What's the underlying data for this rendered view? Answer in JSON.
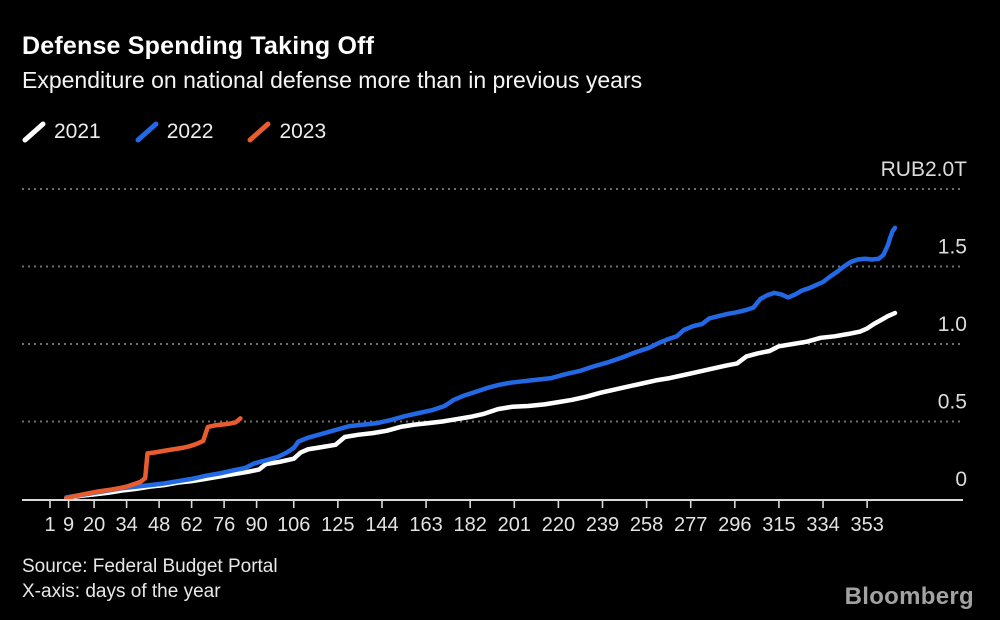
{
  "header": {
    "title": "Defense Spending Taking Off",
    "subtitle": "Expenditure on national defense more than in previous years"
  },
  "legend": {
    "items": [
      {
        "label": "2021",
        "color": "#ffffff"
      },
      {
        "label": "2022",
        "color": "#2368e4"
      },
      {
        "label": "2023",
        "color": "#e85c2e"
      }
    ]
  },
  "footer": {
    "source": "Source: Federal Budget Portal",
    "xaxis_note": "X-axis: days of the year",
    "brand": "Bloomberg"
  },
  "colors": {
    "background": "#000000",
    "gridline": "#6e6e6e",
    "axis": "#d9d9d9",
    "tick_label": "#e3e3e3",
    "y_label": "#dcdcdc"
  },
  "chart_data": {
    "type": "line",
    "title": "Defense Spending Taking Off",
    "subtitle": "Expenditure on national defense more than in previous years",
    "unit": "RUB trillions",
    "xlabel": "days of the year",
    "ylabel": "RUB2.0T",
    "xlim": [
      1,
      365
    ],
    "ylim": [
      0,
      2.07
    ],
    "grid": "horizontal dotted",
    "legend_position": "top-left",
    "x_ticks": [
      1,
      9,
      20,
      34,
      48,
      62,
      76,
      90,
      106,
      125,
      144,
      163,
      182,
      201,
      220,
      239,
      258,
      277,
      296,
      315,
      334,
      353
    ],
    "y_axis": {
      "ticks": [
        {
          "value": 2.0,
          "label": "RUB2.0T"
        },
        {
          "value": 1.5,
          "label": "1.5"
        },
        {
          "value": 1.0,
          "label": "1.0"
        },
        {
          "value": 0.5,
          "label": "0.5"
        },
        {
          "value": 0.0,
          "label": "0"
        }
      ]
    },
    "series": [
      {
        "name": "2021",
        "color": "#ffffff",
        "points": [
          [
            8,
            0.005
          ],
          [
            14,
            0.02
          ],
          [
            20,
            0.03
          ],
          [
            26,
            0.04
          ],
          [
            32,
            0.055
          ],
          [
            38,
            0.065
          ],
          [
            44,
            0.08
          ],
          [
            50,
            0.09
          ],
          [
            56,
            0.105
          ],
          [
            62,
            0.115
          ],
          [
            68,
            0.13
          ],
          [
            74,
            0.145
          ],
          [
            80,
            0.16
          ],
          [
            86,
            0.175
          ],
          [
            91,
            0.19
          ],
          [
            94,
            0.225
          ],
          [
            100,
            0.24
          ],
          [
            106,
            0.26
          ],
          [
            109,
            0.3
          ],
          [
            112,
            0.32
          ],
          [
            118,
            0.335
          ],
          [
            124,
            0.35
          ],
          [
            128,
            0.4
          ],
          [
            134,
            0.415
          ],
          [
            140,
            0.425
          ],
          [
            146,
            0.44
          ],
          [
            152,
            0.465
          ],
          [
            158,
            0.48
          ],
          [
            164,
            0.49
          ],
          [
            170,
            0.5
          ],
          [
            176,
            0.515
          ],
          [
            182,
            0.53
          ],
          [
            188,
            0.55
          ],
          [
            194,
            0.58
          ],
          [
            200,
            0.595
          ],
          [
            207,
            0.6
          ],
          [
            214,
            0.61
          ],
          [
            220,
            0.625
          ],
          [
            226,
            0.64
          ],
          [
            232,
            0.66
          ],
          [
            238,
            0.685
          ],
          [
            244,
            0.705
          ],
          [
            250,
            0.725
          ],
          [
            256,
            0.745
          ],
          [
            262,
            0.765
          ],
          [
            268,
            0.78
          ],
          [
            274,
            0.8
          ],
          [
            280,
            0.82
          ],
          [
            286,
            0.84
          ],
          [
            292,
            0.86
          ],
          [
            297,
            0.875
          ],
          [
            301,
            0.92
          ],
          [
            306,
            0.94
          ],
          [
            311,
            0.955
          ],
          [
            315,
            0.985
          ],
          [
            321,
            1.0
          ],
          [
            327,
            1.015
          ],
          [
            333,
            1.04
          ],
          [
            339,
            1.05
          ],
          [
            345,
            1.065
          ],
          [
            350,
            1.08
          ],
          [
            353,
            1.1
          ],
          [
            356,
            1.13
          ],
          [
            359,
            1.155
          ],
          [
            362,
            1.18
          ],
          [
            365,
            1.2
          ]
        ]
      },
      {
        "name": "2022",
        "color": "#2368e4",
        "points": [
          [
            8,
            0.01
          ],
          [
            14,
            0.025
          ],
          [
            20,
            0.04
          ],
          [
            26,
            0.055
          ],
          [
            32,
            0.07
          ],
          [
            38,
            0.08
          ],
          [
            44,
            0.09
          ],
          [
            50,
            0.1
          ],
          [
            56,
            0.115
          ],
          [
            62,
            0.13
          ],
          [
            68,
            0.15
          ],
          [
            74,
            0.165
          ],
          [
            80,
            0.185
          ],
          [
            85,
            0.2
          ],
          [
            89,
            0.23
          ],
          [
            94,
            0.25
          ],
          [
            99,
            0.27
          ],
          [
            103,
            0.3
          ],
          [
            106,
            0.33
          ],
          [
            108,
            0.37
          ],
          [
            112,
            0.395
          ],
          [
            118,
            0.42
          ],
          [
            124,
            0.445
          ],
          [
            130,
            0.47
          ],
          [
            136,
            0.48
          ],
          [
            142,
            0.49
          ],
          [
            148,
            0.51
          ],
          [
            154,
            0.535
          ],
          [
            160,
            0.555
          ],
          [
            166,
            0.575
          ],
          [
            171,
            0.6
          ],
          [
            175,
            0.64
          ],
          [
            179,
            0.665
          ],
          [
            184,
            0.69
          ],
          [
            189,
            0.715
          ],
          [
            194,
            0.735
          ],
          [
            199,
            0.75
          ],
          [
            205,
            0.76
          ],
          [
            211,
            0.77
          ],
          [
            217,
            0.78
          ],
          [
            223,
            0.805
          ],
          [
            229,
            0.825
          ],
          [
            235,
            0.855
          ],
          [
            241,
            0.88
          ],
          [
            247,
            0.91
          ],
          [
            253,
            0.945
          ],
          [
            259,
            0.975
          ],
          [
            263,
            1.005
          ],
          [
            267,
            1.03
          ],
          [
            271,
            1.05
          ],
          [
            274,
            1.09
          ],
          [
            278,
            1.115
          ],
          [
            282,
            1.13
          ],
          [
            285,
            1.165
          ],
          [
            289,
            1.18
          ],
          [
            293,
            1.195
          ],
          [
            297,
            1.205
          ],
          [
            301,
            1.22
          ],
          [
            304,
            1.235
          ],
          [
            307,
            1.29
          ],
          [
            310,
            1.315
          ],
          [
            313,
            1.33
          ],
          [
            316,
            1.32
          ],
          [
            319,
            1.3
          ],
          [
            322,
            1.32
          ],
          [
            325,
            1.345
          ],
          [
            328,
            1.36
          ],
          [
            331,
            1.38
          ],
          [
            334,
            1.4
          ],
          [
            337,
            1.435
          ],
          [
            340,
            1.465
          ],
          [
            343,
            1.5
          ],
          [
            346,
            1.53
          ],
          [
            349,
            1.545
          ],
          [
            352,
            1.55
          ],
          [
            355,
            1.545
          ],
          [
            358,
            1.55
          ],
          [
            360,
            1.575
          ],
          [
            362,
            1.64
          ],
          [
            363,
            1.69
          ],
          [
            364,
            1.73
          ],
          [
            365,
            1.75
          ]
        ]
      },
      {
        "name": "2023",
        "color": "#e85c2e",
        "points": [
          [
            8,
            0.005
          ],
          [
            12,
            0.02
          ],
          [
            17,
            0.035
          ],
          [
            22,
            0.05
          ],
          [
            27,
            0.06
          ],
          [
            31,
            0.07
          ],
          [
            34,
            0.08
          ],
          [
            37,
            0.095
          ],
          [
            40,
            0.11
          ],
          [
            42,
            0.135
          ],
          [
            43,
            0.295
          ],
          [
            46,
            0.3
          ],
          [
            50,
            0.31
          ],
          [
            54,
            0.32
          ],
          [
            58,
            0.33
          ],
          [
            61,
            0.34
          ],
          [
            64,
            0.355
          ],
          [
            67,
            0.375
          ],
          [
            68,
            0.42
          ],
          [
            69,
            0.465
          ],
          [
            72,
            0.475
          ],
          [
            75,
            0.48
          ],
          [
            78,
            0.485
          ],
          [
            81,
            0.495
          ],
          [
            83,
            0.52
          ]
        ]
      }
    ]
  }
}
